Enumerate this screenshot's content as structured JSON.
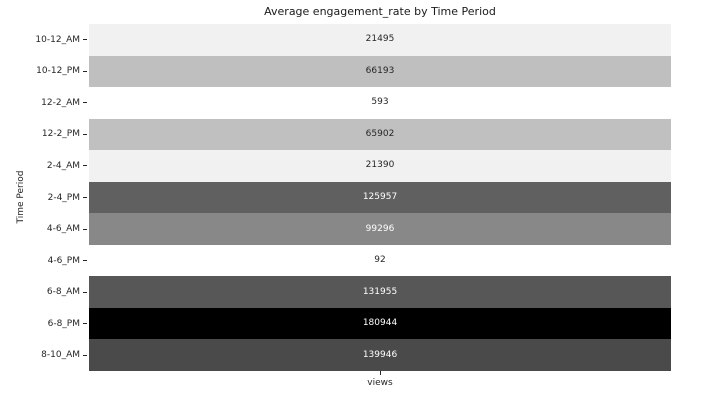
{
  "chart_data": {
    "type": "heatmap",
    "title": "Average engagement_rate by Time Period",
    "xlabel": "views",
    "ylabel": "Time Period",
    "columns": [
      "views"
    ],
    "colormap": "Greys",
    "vmin": 92,
    "vmax": 180944,
    "categories": [
      "10-12_AM",
      "10-12_PM",
      "12-2_AM",
      "12-2_PM",
      "2-4_AM",
      "2-4_PM",
      "4-6_AM",
      "4-6_PM",
      "6-8_AM",
      "6-8_PM",
      "8-10_AM"
    ],
    "values": [
      21495,
      66193,
      593,
      65902,
      21390,
      125957,
      99296,
      92,
      131955,
      180944,
      139946
    ],
    "rows": [
      {
        "label": "10-12_AM",
        "value": 21495,
        "color": "#f1f1f1",
        "text_color": "#262626"
      },
      {
        "label": "10-12_PM",
        "value": 66193,
        "color": "#bfbfbf",
        "text_color": "#262626"
      },
      {
        "label": "12-2_AM",
        "value": 593,
        "color": "#ffffff",
        "text_color": "#262626"
      },
      {
        "label": "12-2_PM",
        "value": 65902,
        "color": "#c0c0c0",
        "text_color": "#262626"
      },
      {
        "label": "2-4_AM",
        "value": 21390,
        "color": "#f1f1f1",
        "text_color": "#262626"
      },
      {
        "label": "2-4_PM",
        "value": 125957,
        "color": "#606060",
        "text_color": "#ffffff"
      },
      {
        "label": "4-6_AM",
        "value": 99296,
        "color": "#888888",
        "text_color": "#ffffff"
      },
      {
        "label": "4-6_PM",
        "value": 92,
        "color": "#ffffff",
        "text_color": "#262626"
      },
      {
        "label": "6-8_AM",
        "value": 131955,
        "color": "#575757",
        "text_color": "#ffffff"
      },
      {
        "label": "6-8_PM",
        "value": 180944,
        "color": "#000000",
        "text_color": "#ffffff"
      },
      {
        "label": "8-10_AM",
        "value": 139946,
        "color": "#4a4a4a",
        "text_color": "#ffffff"
      }
    ]
  }
}
